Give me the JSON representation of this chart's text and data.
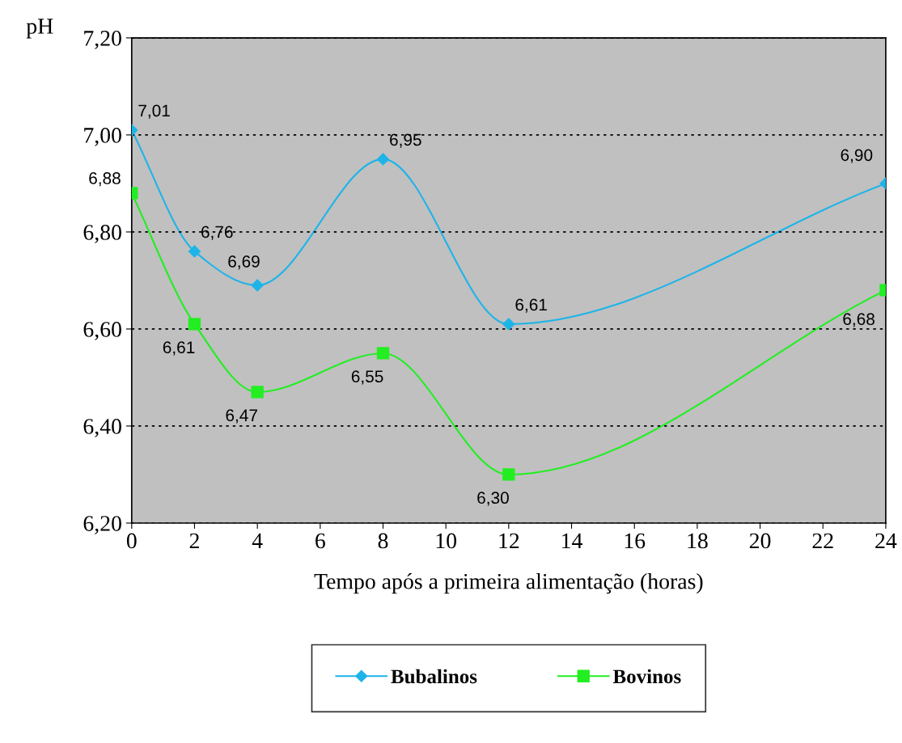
{
  "chart_data": {
    "type": "line",
    "ylabel": "pH",
    "xlabel": "Tempo após a primeira alimentação (horas)",
    "xlim": [
      0,
      24
    ],
    "xticks": [
      0,
      2,
      4,
      6,
      8,
      10,
      12,
      14,
      16,
      18,
      20,
      22,
      24
    ],
    "ylim": [
      6.2,
      7.2
    ],
    "yticks": [
      {
        "value": 6.2,
        "label": "6,20"
      },
      {
        "value": 6.4,
        "label": "6,40"
      },
      {
        "value": 6.6,
        "label": "6,60"
      },
      {
        "value": 6.8,
        "label": "6,80"
      },
      {
        "value": 7.0,
        "label": "7,00"
      },
      {
        "value": 7.2,
        "label": "7,20"
      }
    ],
    "grid": "y",
    "legend": "bottom",
    "series": [
      {
        "name": "Bubalinos",
        "color": "#1eb4e8",
        "marker": "diamond",
        "x": [
          0,
          2,
          4,
          8,
          12,
          24
        ],
        "values": [
          7.01,
          6.76,
          6.69,
          6.95,
          6.61,
          6.9
        ],
        "value_labels": [
          "7,01",
          "6,76",
          "6,69",
          "6,95",
          "6,61",
          "6,90"
        ]
      },
      {
        "name": "Bovinos",
        "color": "#22ee22",
        "marker": "square",
        "x": [
          0,
          2,
          4,
          8,
          12,
          24
        ],
        "values": [
          6.88,
          6.61,
          6.47,
          6.55,
          6.3,
          6.68
        ],
        "value_labels": [
          "6,88",
          "6,61",
          "6,47",
          "6,55",
          "6,30",
          "6,68"
        ]
      }
    ]
  }
}
